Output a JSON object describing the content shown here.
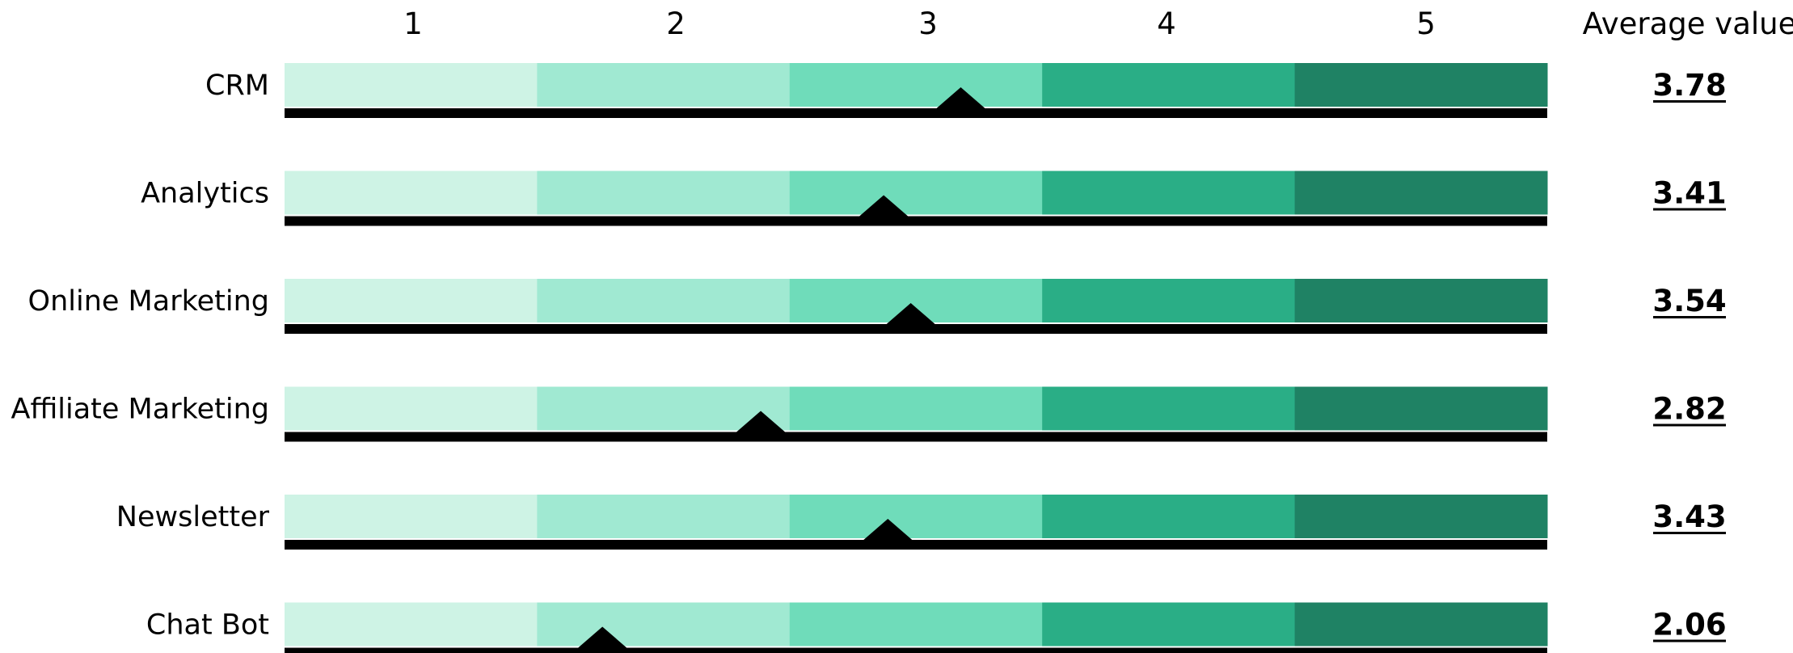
{
  "chart_data": {
    "type": "bar",
    "scale_labels": [
      "1",
      "2",
      "3",
      "4",
      "5"
    ],
    "value_column_header": "Average value",
    "band_colors": [
      "#cef3e5",
      "#a0e9d2",
      "#6fdcba",
      "#2aae86",
      "#1f8264"
    ],
    "marker_color": "#000000",
    "xlim": [
      1,
      5
    ],
    "categories": [
      "CRM",
      "Analytics",
      "Online Marketing",
      "Affiliate Marketing",
      "Newsletter",
      "Chat Bot"
    ],
    "values": [
      3.78,
      3.41,
      3.54,
      2.82,
      3.43,
      2.06
    ],
    "value_labels": [
      "3.78",
      "3.41",
      "3.54",
      "2.82",
      "3.43",
      "2.06"
    ]
  }
}
